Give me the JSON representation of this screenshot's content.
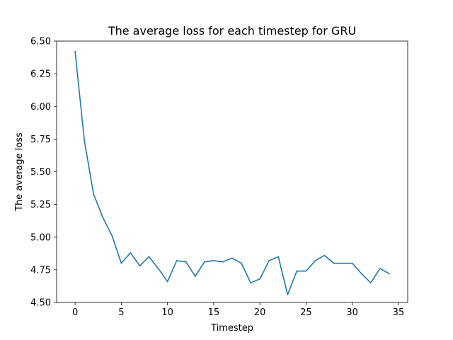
{
  "chart_data": {
    "type": "line",
    "title": "The average loss for each timestep for GRU",
    "xlabel": "Timestep",
    "ylabel": "The average loss",
    "xlim": [
      -2,
      36
    ],
    "ylim": [
      4.5,
      6.5
    ],
    "xticks": [
      0,
      5,
      10,
      15,
      20,
      25,
      30,
      35
    ],
    "yticks": [
      4.5,
      4.75,
      5.0,
      5.25,
      5.5,
      5.75,
      6.0,
      6.25,
      6.5
    ],
    "xtick_labels": [
      "0",
      "5",
      "10",
      "15",
      "20",
      "25",
      "30",
      "35"
    ],
    "ytick_labels": [
      "4.50",
      "4.75",
      "5.00",
      "5.25",
      "5.50",
      "5.75",
      "6.00",
      "6.25",
      "6.50"
    ],
    "grid": false,
    "series": [
      {
        "color": "#1f77b4",
        "x": [
          0,
          1,
          2,
          3,
          4,
          5,
          6,
          7,
          8,
          9,
          10,
          11,
          12,
          13,
          14,
          15,
          16,
          17,
          18,
          19,
          20,
          21,
          22,
          23,
          24,
          25,
          26,
          27,
          28,
          29,
          30,
          31,
          32,
          33,
          34
        ],
        "values": [
          6.42,
          5.74,
          5.33,
          5.15,
          5.01,
          4.8,
          4.88,
          4.78,
          4.85,
          4.76,
          4.66,
          4.82,
          4.81,
          4.7,
          4.81,
          4.82,
          4.81,
          4.84,
          4.8,
          4.65,
          4.68,
          4.82,
          4.85,
          4.56,
          4.74,
          4.74,
          4.82,
          4.86,
          4.8,
          4.8,
          4.8,
          4.72,
          4.65,
          4.76,
          4.72
        ]
      }
    ]
  }
}
